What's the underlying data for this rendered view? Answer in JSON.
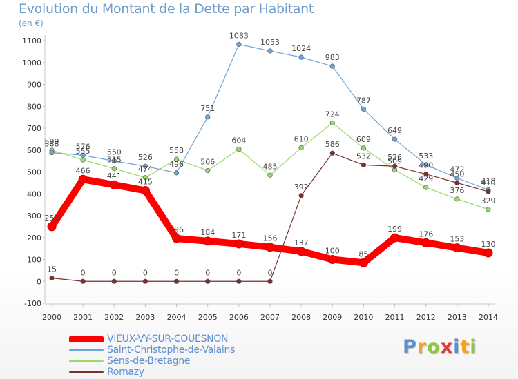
{
  "header": {
    "title": "Evolution du Montant de la Dette par Habitant",
    "unit": "(en €)"
  },
  "brand": {
    "text": "Proxiti",
    "letter_colors": [
      "#5b8fd0",
      "#f6a21c",
      "#8dc63f",
      "#e23a3a",
      "#5b8fd0",
      "#f6a21c",
      "#8dc63f"
    ]
  },
  "chart_data": {
    "type": "line",
    "title": "Evolution du Montant de la Dette par Habitant",
    "ylabel": "(en €)",
    "xlabel": "",
    "x": [
      "2000",
      "2001",
      "2002",
      "2003",
      "2004",
      "2005",
      "2006",
      "2007",
      "2008",
      "2009",
      "2010",
      "2011",
      "2012",
      "2013",
      "2014"
    ],
    "ylim": [
      -100,
      1100
    ],
    "yticks": [
      -100,
      0,
      100,
      200,
      300,
      400,
      500,
      600,
      700,
      800,
      900,
      1000,
      1100
    ],
    "grid": false,
    "legend_position": "bottom-left",
    "series": [
      {
        "name": "VIEUX-VY-SUR-COUESNON",
        "color": "#ff0000",
        "values": [
          250,
          466,
          441,
          415,
          196,
          184,
          171,
          156,
          137,
          100,
          85,
          199,
          176,
          153,
          130
        ]
      },
      {
        "name": "Saint-Christophe-de-Valains",
        "color": "#6fa4d6",
        "values": [
          588,
          576,
          550,
          526,
          496,
          751,
          1083,
          1053,
          1024,
          983,
          787,
          649,
          533,
          472,
          418
        ]
      },
      {
        "name": "Sens-de-Bretagne",
        "color": "#99d96b",
        "values": [
          599,
          555,
          515,
          474,
          558,
          506,
          604,
          485,
          610,
          724,
          609,
          509,
          429,
          376,
          329
        ]
      },
      {
        "name": "Romazy",
        "color": "#7b2f2f",
        "values": [
          15,
          0,
          0,
          0,
          0,
          0,
          0,
          0,
          392,
          586,
          532,
          526,
          490,
          450,
          410
        ]
      }
    ]
  }
}
